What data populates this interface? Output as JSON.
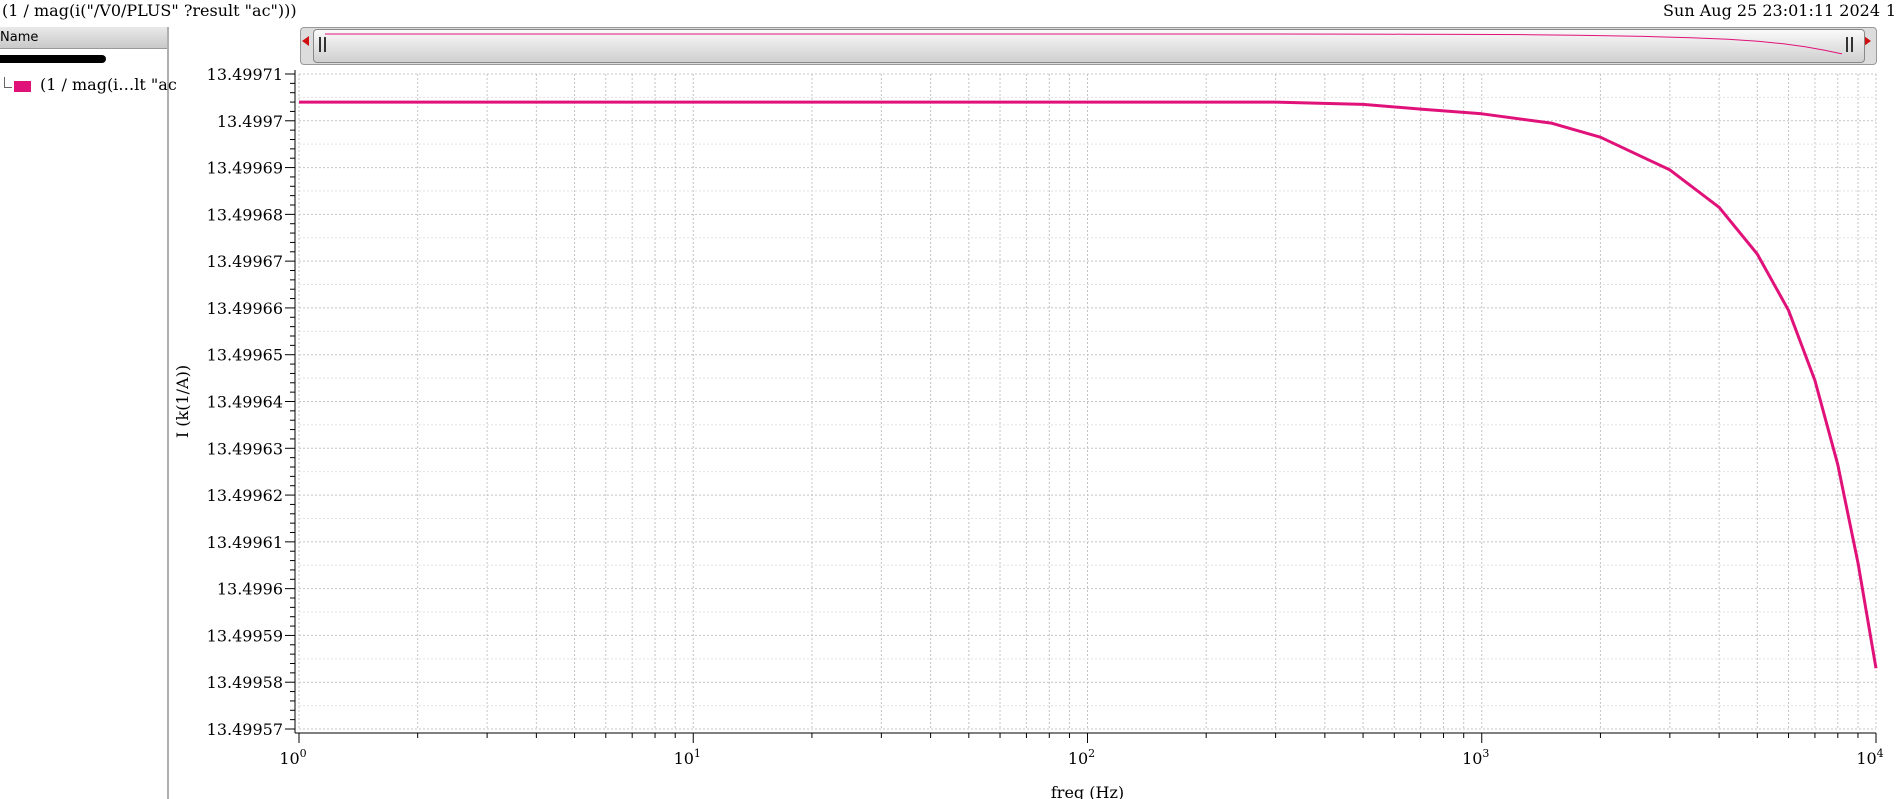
{
  "header": {
    "expression": "(1 / mag(i(\"/V0/PLUS\" ?result \"ac\")))",
    "timestamp": "Sun Aug 25 23:01:11 2024",
    "trailing": "1"
  },
  "legend": {
    "column_header": "Name",
    "items": [
      {
        "label": "(1 / mag(i…lt \"ac",
        "color": "#e0127a"
      }
    ]
  },
  "chart_data": {
    "type": "line",
    "x_scale": "log",
    "xlabel": "freq (Hz)",
    "ylabel": "I (k(1/A))",
    "xlim": [
      1,
      10000
    ],
    "ylim": [
      13.49957,
      13.49971
    ],
    "x_ticks": [
      {
        "value": 1,
        "base": "10",
        "exp": "0"
      },
      {
        "value": 10,
        "base": "10",
        "exp": "1"
      },
      {
        "value": 100,
        "base": "10",
        "exp": "2"
      },
      {
        "value": 1000,
        "base": "10",
        "exp": "3"
      },
      {
        "value": 10000,
        "base": "10",
        "exp": "4"
      }
    ],
    "y_ticks": [
      {
        "value": 13.49971,
        "label": "13.49971"
      },
      {
        "value": 13.4997,
        "label": "13.4997"
      },
      {
        "value": 13.49969,
        "label": "13.49969"
      },
      {
        "value": 13.49968,
        "label": "13.49968"
      },
      {
        "value": 13.49967,
        "label": "13.49967"
      },
      {
        "value": 13.49966,
        "label": "13.49966"
      },
      {
        "value": 13.49965,
        "label": "13.49965"
      },
      {
        "value": 13.49964,
        "label": "13.49964"
      },
      {
        "value": 13.49963,
        "label": "13.49963"
      },
      {
        "value": 13.49962,
        "label": "13.49962"
      },
      {
        "value": 13.49961,
        "label": "13.49961"
      },
      {
        "value": 13.4996,
        "label": "13.4996"
      },
      {
        "value": 13.49959,
        "label": "13.49959"
      },
      {
        "value": 13.49958,
        "label": "13.49958"
      },
      {
        "value": 13.49957,
        "label": "13.49957"
      }
    ],
    "grid": true,
    "series": [
      {
        "color": "#e0127a",
        "x": [
          1,
          10,
          100,
          300,
          500,
          700,
          1000,
          1500,
          2000,
          3000,
          4000,
          5000,
          6000,
          7000,
          8000,
          9000,
          10000
        ],
        "values": [
          13.499704,
          13.499704,
          13.499704,
          13.499704,
          13.4997035,
          13.4997025,
          13.4997015,
          13.4996995,
          13.4996965,
          13.4996895,
          13.4996815,
          13.4996715,
          13.4996595,
          13.4996445,
          13.4996265,
          13.4996055,
          13.499583
        ]
      }
    ]
  }
}
